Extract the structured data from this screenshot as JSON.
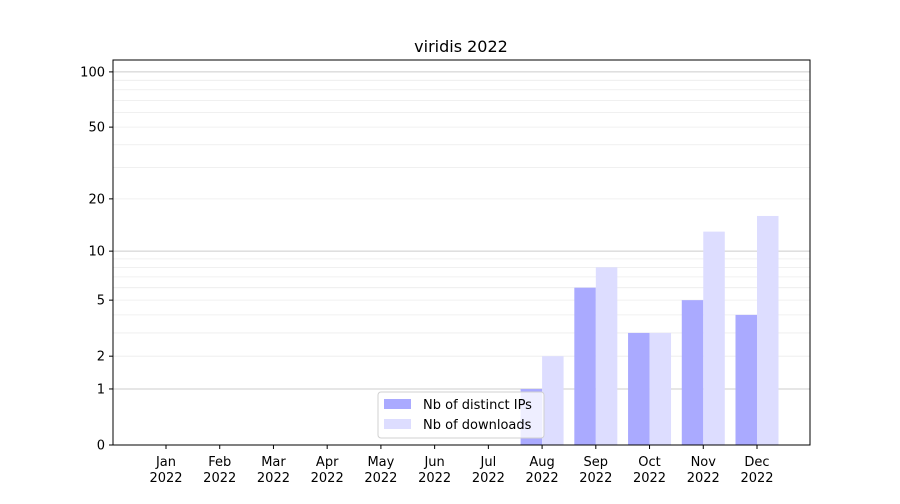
{
  "chart_data": {
    "type": "bar",
    "title": "viridis 2022",
    "xlabel": "",
    "ylabel": "",
    "yscale": "symlog",
    "ylim": [
      0,
      116
    ],
    "yticks": [
      0,
      1,
      2,
      5,
      10,
      20,
      50,
      100
    ],
    "ytick_labels": [
      "0",
      "1",
      "2",
      "5",
      "10",
      "20",
      "50",
      "100"
    ],
    "grid": true,
    "legend_position": "lower-center",
    "categories": [
      "Jan\n2022",
      "Feb\n2022",
      "Mar\n2022",
      "Apr\n2022",
      "May\n2022",
      "Jun\n2022",
      "Jul\n2022",
      "Aug\n2022",
      "Sep\n2022",
      "Oct\n2022",
      "Nov\n2022",
      "Dec\n2022"
    ],
    "series": [
      {
        "name": "Nb of distinct IPs",
        "color": "#aaaaff",
        "values": [
          0,
          0,
          0,
          0,
          0,
          0,
          0,
          1,
          6,
          3,
          5,
          4
        ]
      },
      {
        "name": "Nb of downloads",
        "color": "#ddddff",
        "values": [
          0,
          0,
          0,
          0,
          0,
          0,
          0,
          2,
          8,
          3,
          13,
          16
        ]
      }
    ]
  }
}
